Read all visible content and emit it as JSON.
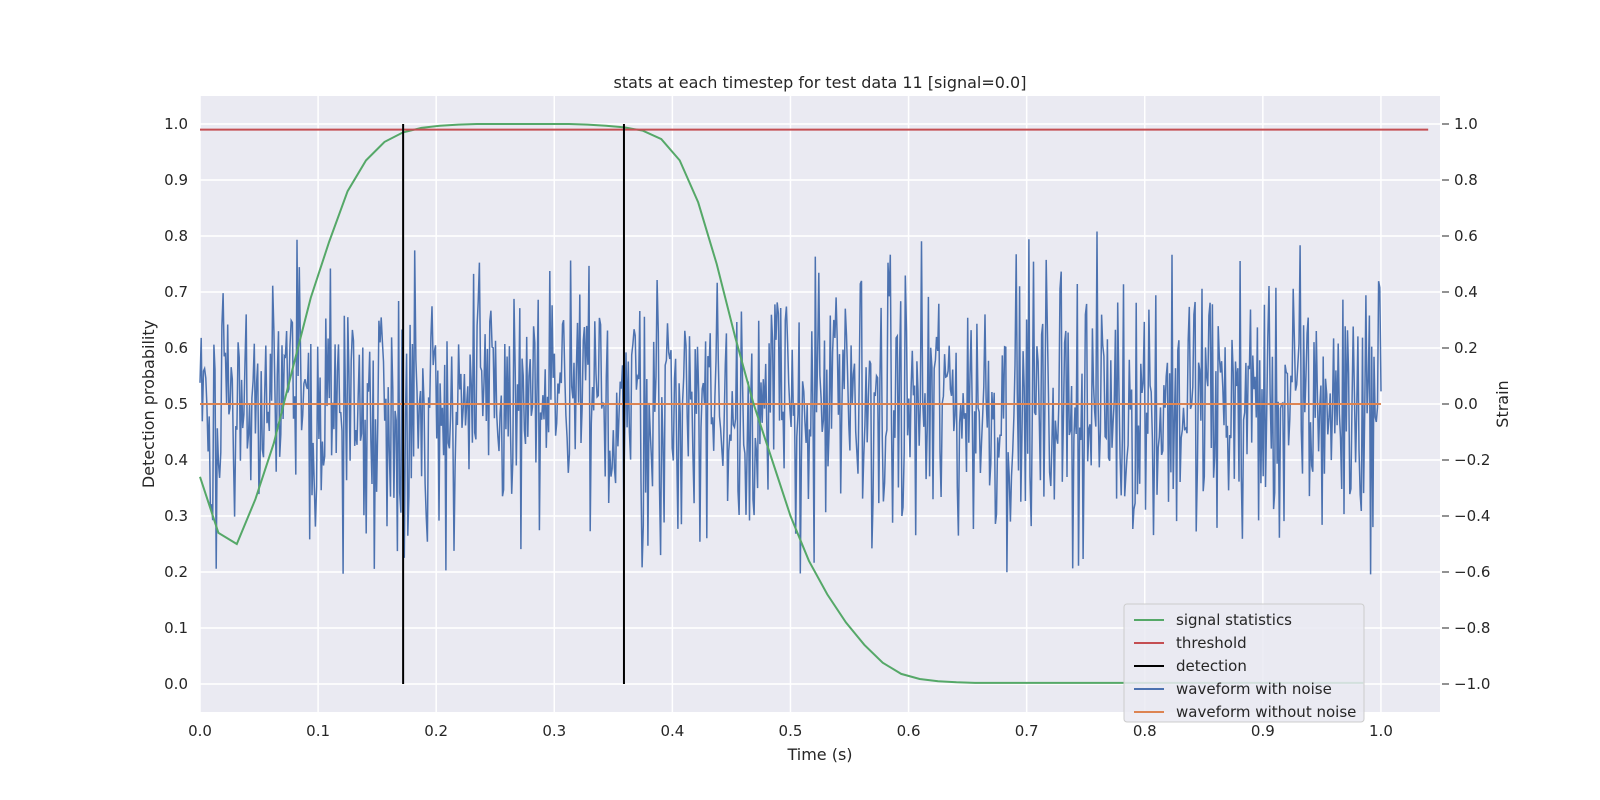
{
  "chart_data": {
    "type": "line",
    "title": "stats at each timestep for test data 11 [signal=0.0]",
    "xlabel": "Time (s)",
    "ylabel": "Detection probability",
    "y2label": "Strain",
    "xlim": [
      0.0,
      1.05
    ],
    "ylim": [
      -0.05,
      1.05
    ],
    "y2lim": [
      -1.1,
      1.1
    ],
    "xticks": [
      "0.0",
      "0.1",
      "0.2",
      "0.3",
      "0.4",
      "0.5",
      "0.6",
      "0.7",
      "0.8",
      "0.9",
      "1.0"
    ],
    "yticks": [
      "0.0",
      "0.1",
      "0.2",
      "0.3",
      "0.4",
      "0.5",
      "0.6",
      "0.7",
      "0.8",
      "0.9",
      "1.0"
    ],
    "y2ticks": [
      "−1.0",
      "−0.8",
      "−0.6",
      "−0.4",
      "−0.2",
      "0.0",
      "0.2",
      "0.4",
      "0.6",
      "0.8",
      "1.0"
    ],
    "grid": true,
    "legend_position": "lower-right",
    "series": [
      {
        "name": "signal statistics",
        "axis": "left",
        "color": "#55a868",
        "x": [
          0.0,
          0.0156,
          0.0312,
          0.0469,
          0.0625,
          0.0781,
          0.0938,
          0.1094,
          0.125,
          0.1406,
          0.1562,
          0.1719,
          0.1875,
          0.2031,
          0.2188,
          0.2344,
          0.25,
          0.2656,
          0.2812,
          0.2969,
          0.3125,
          0.3281,
          0.3438,
          0.3594,
          0.375,
          0.3906,
          0.4062,
          0.4219,
          0.4375,
          0.4531,
          0.4688,
          0.4844,
          0.5,
          0.5156,
          0.5312,
          0.5469,
          0.5625,
          0.5781,
          0.5938,
          0.6094,
          0.625,
          0.6406,
          0.6562,
          0.6719,
          0.6875,
          0.7031,
          0.7188,
          0.75,
          0.8,
          0.85,
          0.9,
          0.95,
          0.985
        ],
        "values": [
          0.37,
          0.27,
          0.25,
          0.33,
          0.43,
          0.56,
          0.69,
          0.79,
          0.88,
          0.935,
          0.968,
          0.985,
          0.993,
          0.997,
          0.999,
          1.0,
          1.0,
          1.0,
          1.0,
          1.0,
          1.0,
          0.999,
          0.997,
          0.994,
          0.988,
          0.973,
          0.935,
          0.86,
          0.75,
          0.62,
          0.5,
          0.4,
          0.3,
          0.22,
          0.16,
          0.11,
          0.07,
          0.038,
          0.018,
          0.009,
          0.005,
          0.003,
          0.002,
          0.002,
          0.002,
          0.002,
          0.002,
          0.002,
          0.002,
          0.002,
          0.002,
          0.002,
          0.002
        ]
      },
      {
        "name": "threshold",
        "axis": "left",
        "color": "#c44e52",
        "x": [
          0.0,
          1.04
        ],
        "values": [
          0.99,
          0.99
        ]
      },
      {
        "name": "detection",
        "axis": "left",
        "color": "#000000",
        "x": [
          0.172,
          0.359
        ],
        "values": [
          [
            0.0,
            1.0
          ],
          [
            0.0,
            1.0
          ]
        ]
      },
      {
        "name": "waveform with noise",
        "axis": "right",
        "color": "#4c72b0",
        "x_range": [
          0.0,
          1.0
        ],
        "sample_count": 1024,
        "amplitude_range": [
          -1.0,
          1.0
        ]
      },
      {
        "name": "waveform without noise",
        "axis": "right",
        "color": "#dd8452",
        "x": [
          0.0,
          1.0
        ],
        "values": [
          0.0,
          0.0
        ]
      }
    ]
  }
}
